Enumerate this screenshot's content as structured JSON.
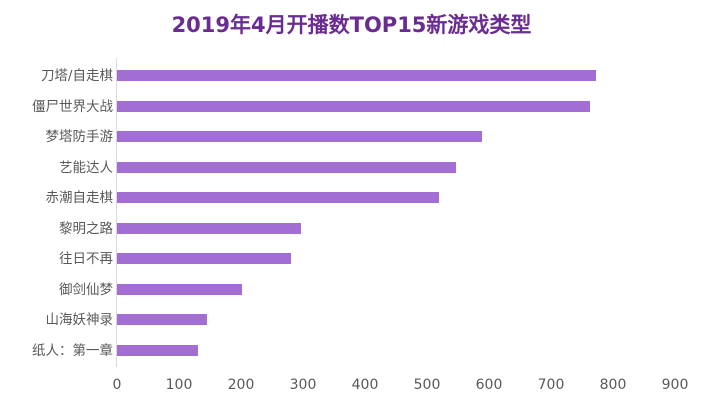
{
  "chart_data": {
    "type": "bar",
    "orientation": "horizontal",
    "title": "2019年4月开播数TOP15新游戏类型",
    "xlabel": "",
    "ylabel": "",
    "xlim": [
      0,
      900
    ],
    "x_ticks": [
      "0",
      "100",
      "200",
      "300",
      "400",
      "500",
      "600",
      "700",
      "800",
      "900"
    ],
    "grid": false,
    "legend": null,
    "categories": [
      "刀塔/自走棋",
      "僵尸世界大战",
      "梦塔防手游",
      "艺能达人",
      "赤潮自走棋",
      "黎明之路",
      "往日不再",
      "御剑仙梦",
      "山海妖神录",
      "纸人：第一章"
    ],
    "values": [
      773,
      763,
      589,
      547,
      519,
      297,
      281,
      202,
      145,
      131
    ],
    "colors": {
      "bar": "#a36ed3",
      "title": "#6a2c91",
      "axis": "#d9d9d9",
      "text": "#595959"
    }
  }
}
